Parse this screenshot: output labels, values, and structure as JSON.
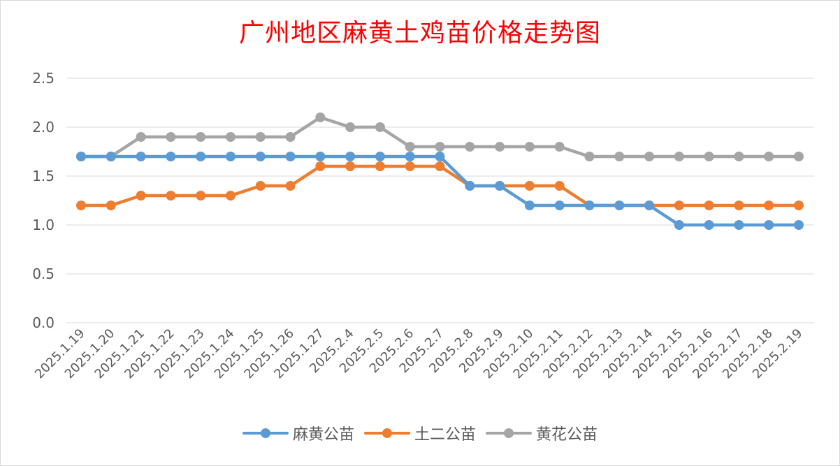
{
  "chart_data": {
    "type": "line",
    "title": "广州地区麻黄土鸡苗价格走势图",
    "categories": [
      "2025.1.19",
      "2025.1.20",
      "2025.1.21",
      "2025.1.22",
      "2025.1.23",
      "2025.1.24",
      "2025.1.25",
      "2025.1.26",
      "2025.1.27",
      "2025.2.4",
      "2025.2.5",
      "2025.2.6",
      "2025.2.7",
      "2025.2.8",
      "2025.2.9",
      "2025.2.10",
      "2025.2.11",
      "2025.2.12",
      "2025.2.13",
      "2025.2.14",
      "2025.2.15",
      "2025.2.16",
      "2025.2.17",
      "2025.2.18",
      "2025.2.19"
    ],
    "series": [
      {
        "name": "麻黄公苗",
        "color": "#5b9bd5",
        "values": [
          1.7,
          1.7,
          1.7,
          1.7,
          1.7,
          1.7,
          1.7,
          1.7,
          1.7,
          1.7,
          1.7,
          1.7,
          1.7,
          1.4,
          1.4,
          1.2,
          1.2,
          1.2,
          1.2,
          1.2,
          1.0,
          1.0,
          1.0,
          1.0,
          1.0
        ]
      },
      {
        "name": "土二公苗",
        "color": "#ed7d31",
        "values": [
          1.2,
          1.2,
          1.3,
          1.3,
          1.3,
          1.3,
          1.4,
          1.4,
          1.6,
          1.6,
          1.6,
          1.6,
          1.6,
          1.4,
          1.4,
          1.4,
          1.4,
          1.2,
          1.2,
          1.2,
          1.2,
          1.2,
          1.2,
          1.2,
          1.2
        ]
      },
      {
        "name": "黄花公苗",
        "color": "#a5a5a5",
        "values": [
          1.7,
          1.7,
          1.9,
          1.9,
          1.9,
          1.9,
          1.9,
          1.9,
          2.1,
          2.0,
          2.0,
          1.8,
          1.8,
          1.8,
          1.8,
          1.8,
          1.8,
          1.7,
          1.7,
          1.7,
          1.7,
          1.7,
          1.7,
          1.7,
          1.7
        ]
      }
    ],
    "yticks": [
      "0.0",
      "0.5",
      "1.0",
      "1.5",
      "2.0",
      "2.5"
    ],
    "ylim": [
      0,
      2.5
    ],
    "grid": true,
    "legend_position": "bottom"
  }
}
